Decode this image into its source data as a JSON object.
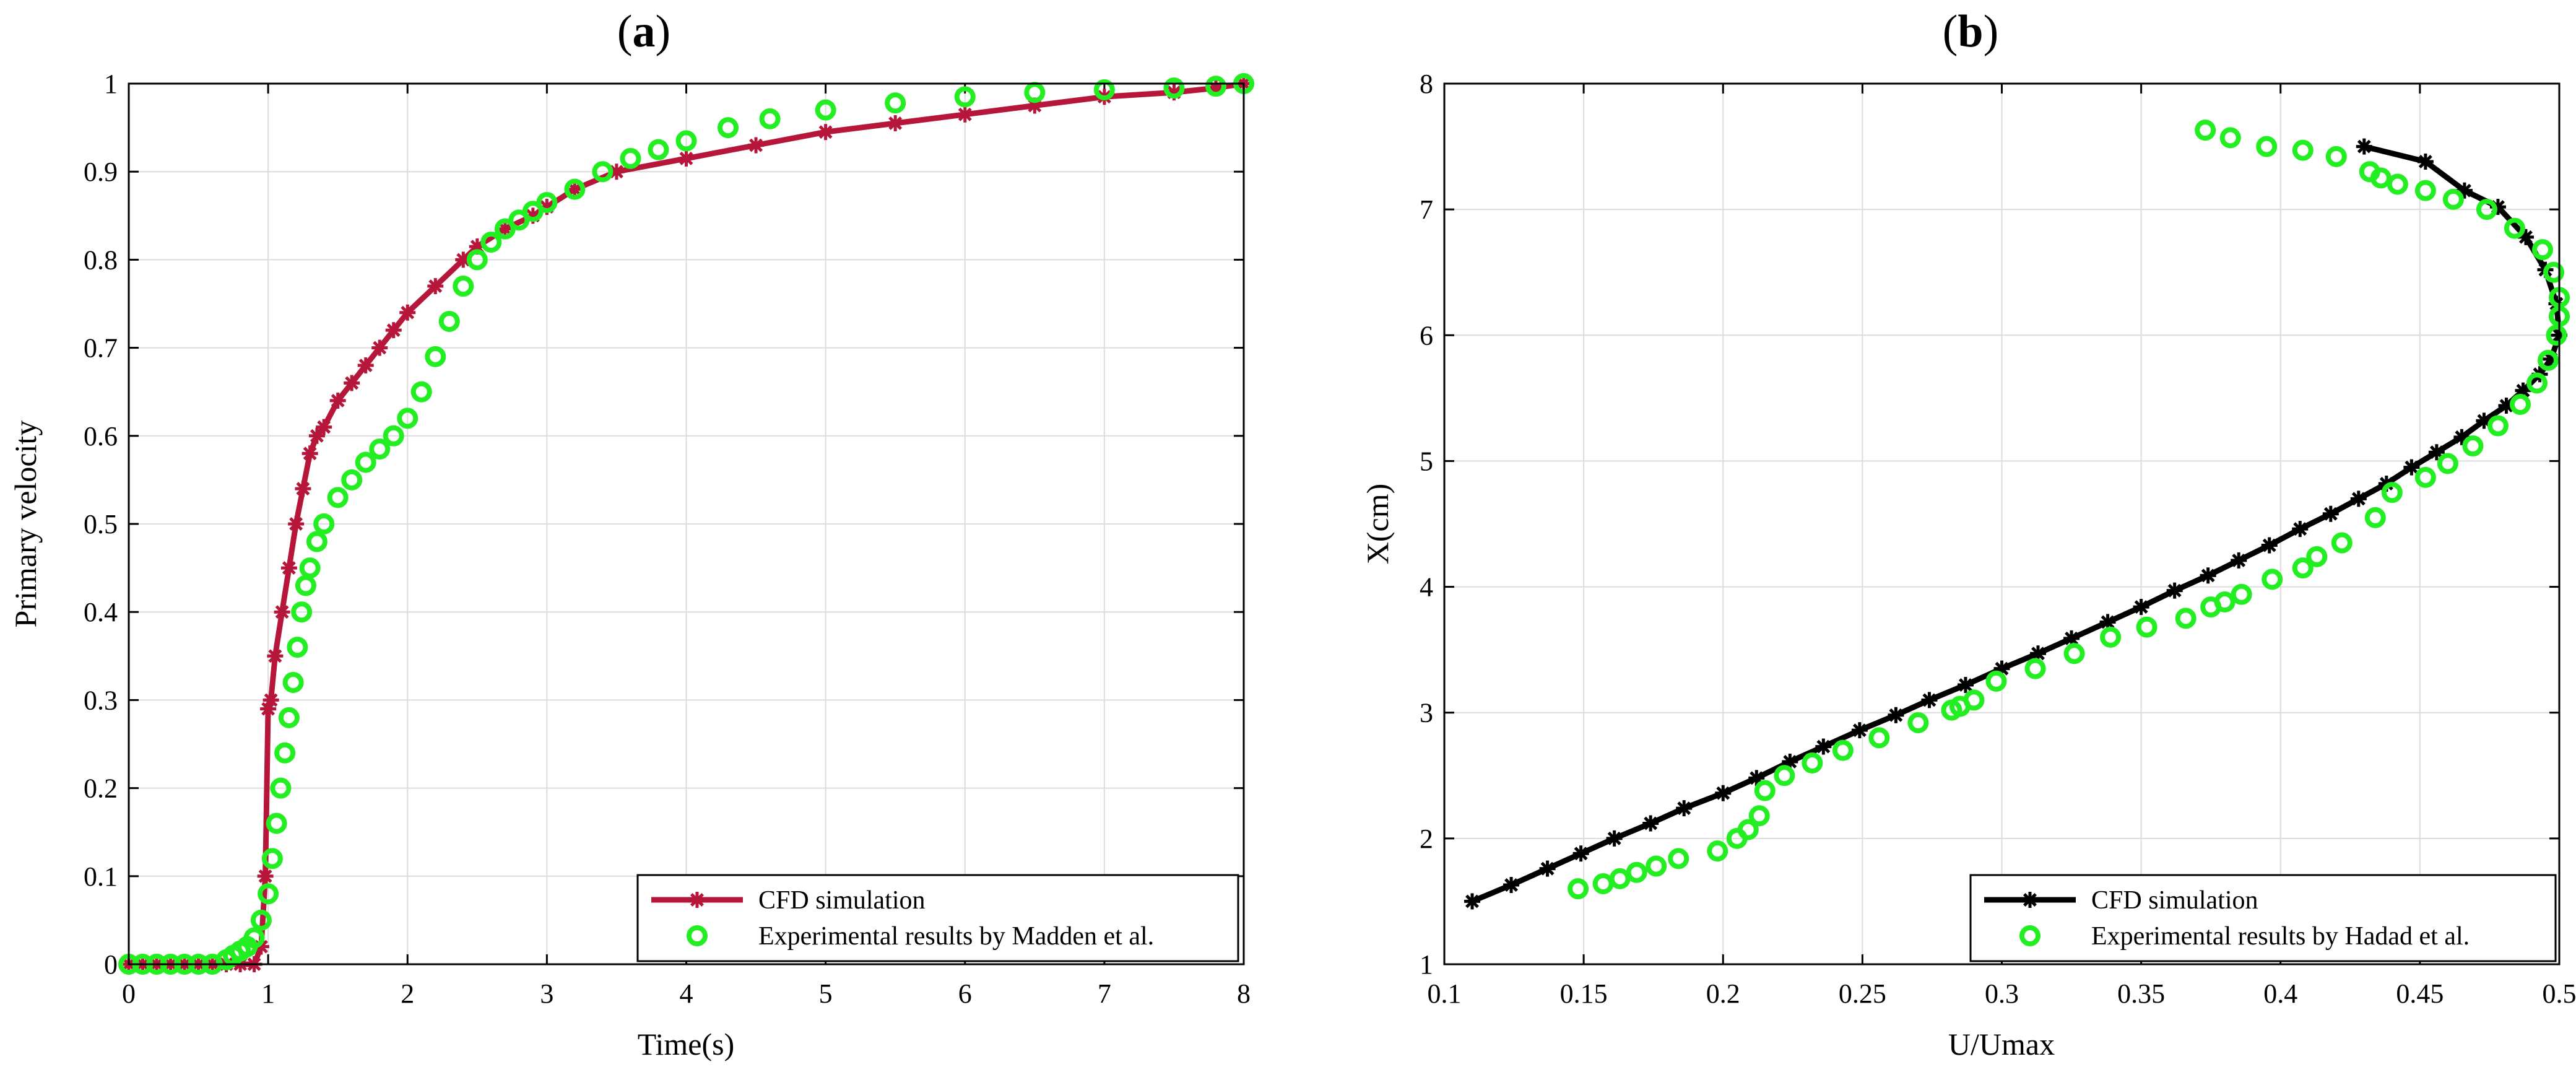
{
  "panels": [
    {
      "letter": "a",
      "xlabel": "Time(s)",
      "ylabel": "Primary velocity"
    },
    {
      "letter": "b",
      "xlabel": "U/Umax",
      "ylabel": "X(cm)"
    }
  ],
  "chart_data": [
    {
      "type": "line",
      "title": "(a)",
      "xlabel": "Time(s)",
      "ylabel": "Primary velocity",
      "xlim": [
        0,
        8
      ],
      "ylim": [
        0,
        1
      ],
      "xticks": [
        0,
        1,
        2,
        3,
        4,
        5,
        6,
        7,
        8
      ],
      "yticks": [
        0,
        0.1,
        0.2,
        0.3,
        0.4,
        0.5,
        0.6,
        0.7,
        0.8,
        0.9,
        1
      ],
      "grid": true,
      "legend_position": "bottom-right",
      "series": [
        {
          "name": "CFD simulation",
          "color": "#b5163a",
          "marker": "asterisk",
          "line": true,
          "x": [
            0,
            0.1,
            0.2,
            0.3,
            0.4,
            0.5,
            0.6,
            0.7,
            0.8,
            0.9,
            0.95,
            0.98,
            1.0,
            1.02,
            1.05,
            1.1,
            1.15,
            1.2,
            1.25,
            1.3,
            1.35,
            1.4,
            1.5,
            1.6,
            1.7,
            1.8,
            1.9,
            2.0,
            2.2,
            2.4,
            2.5,
            2.7,
            2.9,
            3.0,
            3.2,
            3.5,
            4.0,
            4.5,
            5.0,
            5.5,
            6.0,
            6.5,
            7.0,
            7.5,
            7.8,
            8.0
          ],
          "y": [
            0,
            0,
            0,
            0,
            0,
            0,
            0,
            0,
            0,
            0,
            0.02,
            0.1,
            0.29,
            0.3,
            0.35,
            0.4,
            0.45,
            0.5,
            0.54,
            0.58,
            0.6,
            0.61,
            0.64,
            0.66,
            0.68,
            0.7,
            0.72,
            0.74,
            0.77,
            0.8,
            0.815,
            0.835,
            0.85,
            0.86,
            0.88,
            0.9,
            0.915,
            0.93,
            0.945,
            0.955,
            0.965,
            0.975,
            0.985,
            0.99,
            0.995,
            1.0
          ]
        },
        {
          "name": "Experimental results by Madden et al.",
          "color": "#22ee22",
          "marker": "circle",
          "line": false,
          "x": [
            0,
            0.1,
            0.2,
            0.3,
            0.4,
            0.5,
            0.6,
            0.7,
            0.75,
            0.8,
            0.85,
            0.9,
            0.95,
            1.0,
            1.03,
            1.06,
            1.09,
            1.12,
            1.15,
            1.18,
            1.21,
            1.24,
            1.27,
            1.3,
            1.35,
            1.4,
            1.5,
            1.6,
            1.7,
            1.8,
            1.9,
            2.0,
            2.1,
            2.2,
            2.3,
            2.4,
            2.5,
            2.6,
            2.7,
            2.8,
            2.9,
            3.0,
            3.2,
            3.4,
            3.6,
            3.8,
            4.0,
            4.3,
            4.6,
            5.0,
            5.5,
            6.0,
            6.5,
            7.0,
            7.5,
            7.8,
            8.0
          ],
          "y": [
            0,
            0,
            0,
            0,
            0,
            0,
            0,
            0.005,
            0.01,
            0.015,
            0.02,
            0.03,
            0.05,
            0.08,
            0.12,
            0.16,
            0.2,
            0.24,
            0.28,
            0.32,
            0.36,
            0.4,
            0.43,
            0.45,
            0.48,
            0.5,
            0.53,
            0.55,
            0.57,
            0.585,
            0.6,
            0.62,
            0.65,
            0.69,
            0.73,
            0.77,
            0.8,
            0.82,
            0.835,
            0.845,
            0.855,
            0.865,
            0.88,
            0.9,
            0.915,
            0.925,
            0.935,
            0.95,
            0.96,
            0.97,
            0.978,
            0.985,
            0.99,
            0.993,
            0.995,
            0.997,
            1.0
          ]
        }
      ]
    },
    {
      "type": "line",
      "title": "(b)",
      "xlabel": "U/Umax",
      "ylabel": "X(cm)",
      "xlim": [
        0.1,
        0.5
      ],
      "ylim": [
        1,
        8
      ],
      "xticks": [
        0.1,
        0.15,
        0.2,
        0.25,
        0.3,
        0.35,
        0.4,
        0.45,
        0.5
      ],
      "yticks": [
        1,
        2,
        3,
        4,
        5,
        6,
        7,
        8
      ],
      "grid": true,
      "legend_position": "bottom-right",
      "series": [
        {
          "name": "CFD simulation",
          "color": "#000000",
          "marker": "asterisk",
          "line": true,
          "x": [
            0.11,
            0.124,
            0.137,
            0.149,
            0.161,
            0.174,
            0.186,
            0.2,
            0.212,
            0.224,
            0.236,
            0.249,
            0.262,
            0.274,
            0.287,
            0.3,
            0.313,
            0.325,
            0.338,
            0.35,
            0.362,
            0.374,
            0.385,
            0.396,
            0.407,
            0.418,
            0.428,
            0.438,
            0.447,
            0.456,
            0.465,
            0.473,
            0.481,
            0.487,
            0.493,
            0.497,
            0.5,
            0.499,
            0.495,
            0.488,
            0.478,
            0.466,
            0.452,
            0.43
          ],
          "y": [
            1.5,
            1.63,
            1.76,
            1.88,
            2.0,
            2.12,
            2.24,
            2.36,
            2.48,
            2.61,
            2.73,
            2.86,
            2.98,
            3.1,
            3.22,
            3.35,
            3.47,
            3.59,
            3.72,
            3.84,
            3.97,
            4.09,
            4.21,
            4.33,
            4.46,
            4.58,
            4.7,
            4.82,
            4.95,
            5.07,
            5.19,
            5.32,
            5.44,
            5.56,
            5.69,
            5.81,
            6.0,
            6.25,
            6.52,
            6.78,
            7.02,
            7.15,
            7.38,
            7.5
          ]
        },
        {
          "name": "Experimental results by Hadad et al.",
          "color": "#22ee22",
          "marker": "circle",
          "line": false,
          "x": [
            0.148,
            0.157,
            0.163,
            0.169,
            0.176,
            0.184,
            0.198,
            0.205,
            0.209,
            0.213,
            0.215,
            0.222,
            0.232,
            0.243,
            0.256,
            0.27,
            0.282,
            0.285,
            0.29,
            0.298,
            0.312,
            0.326,
            0.339,
            0.352,
            0.366,
            0.375,
            0.38,
            0.386,
            0.397,
            0.408,
            0.413,
            0.422,
            0.434,
            0.44,
            0.452,
            0.46,
            0.469,
            0.478,
            0.486,
            0.492,
            0.496,
            0.499,
            0.5,
            0.5,
            0.498,
            0.494,
            0.484,
            0.474,
            0.462,
            0.452,
            0.442,
            0.436,
            0.432,
            0.42,
            0.408,
            0.395,
            0.382,
            0.373
          ],
          "y": [
            1.6,
            1.64,
            1.68,
            1.73,
            1.78,
            1.84,
            1.9,
            2.0,
            2.07,
            2.18,
            2.38,
            2.5,
            2.6,
            2.7,
            2.8,
            2.92,
            3.02,
            3.05,
            3.1,
            3.25,
            3.35,
            3.47,
            3.6,
            3.68,
            3.75,
            3.84,
            3.88,
            3.94,
            4.06,
            4.15,
            4.24,
            4.35,
            4.55,
            4.75,
            4.87,
            4.98,
            5.12,
            5.28,
            5.45,
            5.62,
            5.8,
            6.0,
            6.15,
            6.3,
            6.5,
            6.68,
            6.85,
            7.0,
            7.08,
            7.15,
            7.2,
            7.25,
            7.3,
            7.42,
            7.47,
            7.5,
            7.57,
            7.63
          ]
        }
      ]
    }
  ]
}
